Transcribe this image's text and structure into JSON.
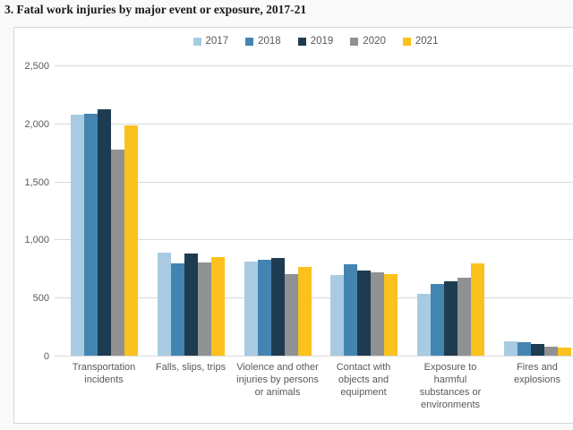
{
  "page": {
    "title": "3. Fatal work injuries by major event or exposure, 2017-21"
  },
  "chart_data": {
    "type": "bar",
    "title": "3. Fatal work injuries by major event or exposure, 2017-21",
    "categories": [
      "Transportation incidents",
      "Falls, slips, trips",
      "Violence and other injuries by persons or animals",
      "Contact with objects and equipment",
      "Exposure to harmful substances or environments",
      "Fires and explosions"
    ],
    "category_label_lines": [
      [
        "Transportation",
        "incidents"
      ],
      [
        "Falls, slips, trips"
      ],
      [
        "Violence and other",
        "injuries by persons",
        "or animals"
      ],
      [
        "Contact with",
        "objects and",
        "equipment"
      ],
      [
        "Exposure to",
        "harmful",
        "substances or",
        "environments"
      ],
      [
        "Fires and",
        "explosions"
      ]
    ],
    "series": [
      {
        "name": "2017",
        "color": "#a9cbe2",
        "values": [
          2077,
          887,
          807,
          695,
          531,
          123
        ]
      },
      {
        "name": "2018",
        "color": "#4484b1",
        "values": [
          2080,
          791,
          828,
          786,
          621,
          115
        ]
      },
      {
        "name": "2019",
        "color": "#1e3c51",
        "values": [
          2122,
          880,
          841,
          732,
          642,
          99
        ]
      },
      {
        "name": "2020",
        "color": "#8f9193",
        "values": [
          1778,
          805,
          705,
          716,
          672,
          74
        ]
      },
      {
        "name": "2021",
        "color": "#fbc11c",
        "values": [
          1982,
          850,
          761,
          705,
          798,
          72
        ]
      }
    ],
    "xlabel": "",
    "ylabel": "",
    "ylim": [
      0,
      2500
    ],
    "yticks": [
      0,
      500,
      1000,
      1500,
      2000,
      2500
    ],
    "ytick_labels": [
      "0",
      "500",
      "1,000",
      "1,500",
      "2,000",
      "2,500"
    ],
    "grid": true,
    "legend_position": "top"
  },
  "colors": {
    "gridline": "#d9d9d9",
    "axis_text": "#595959",
    "frame_border": "#d7d7d7",
    "title_text": "#1a1a1a",
    "chart_background": "#ffffff"
  }
}
